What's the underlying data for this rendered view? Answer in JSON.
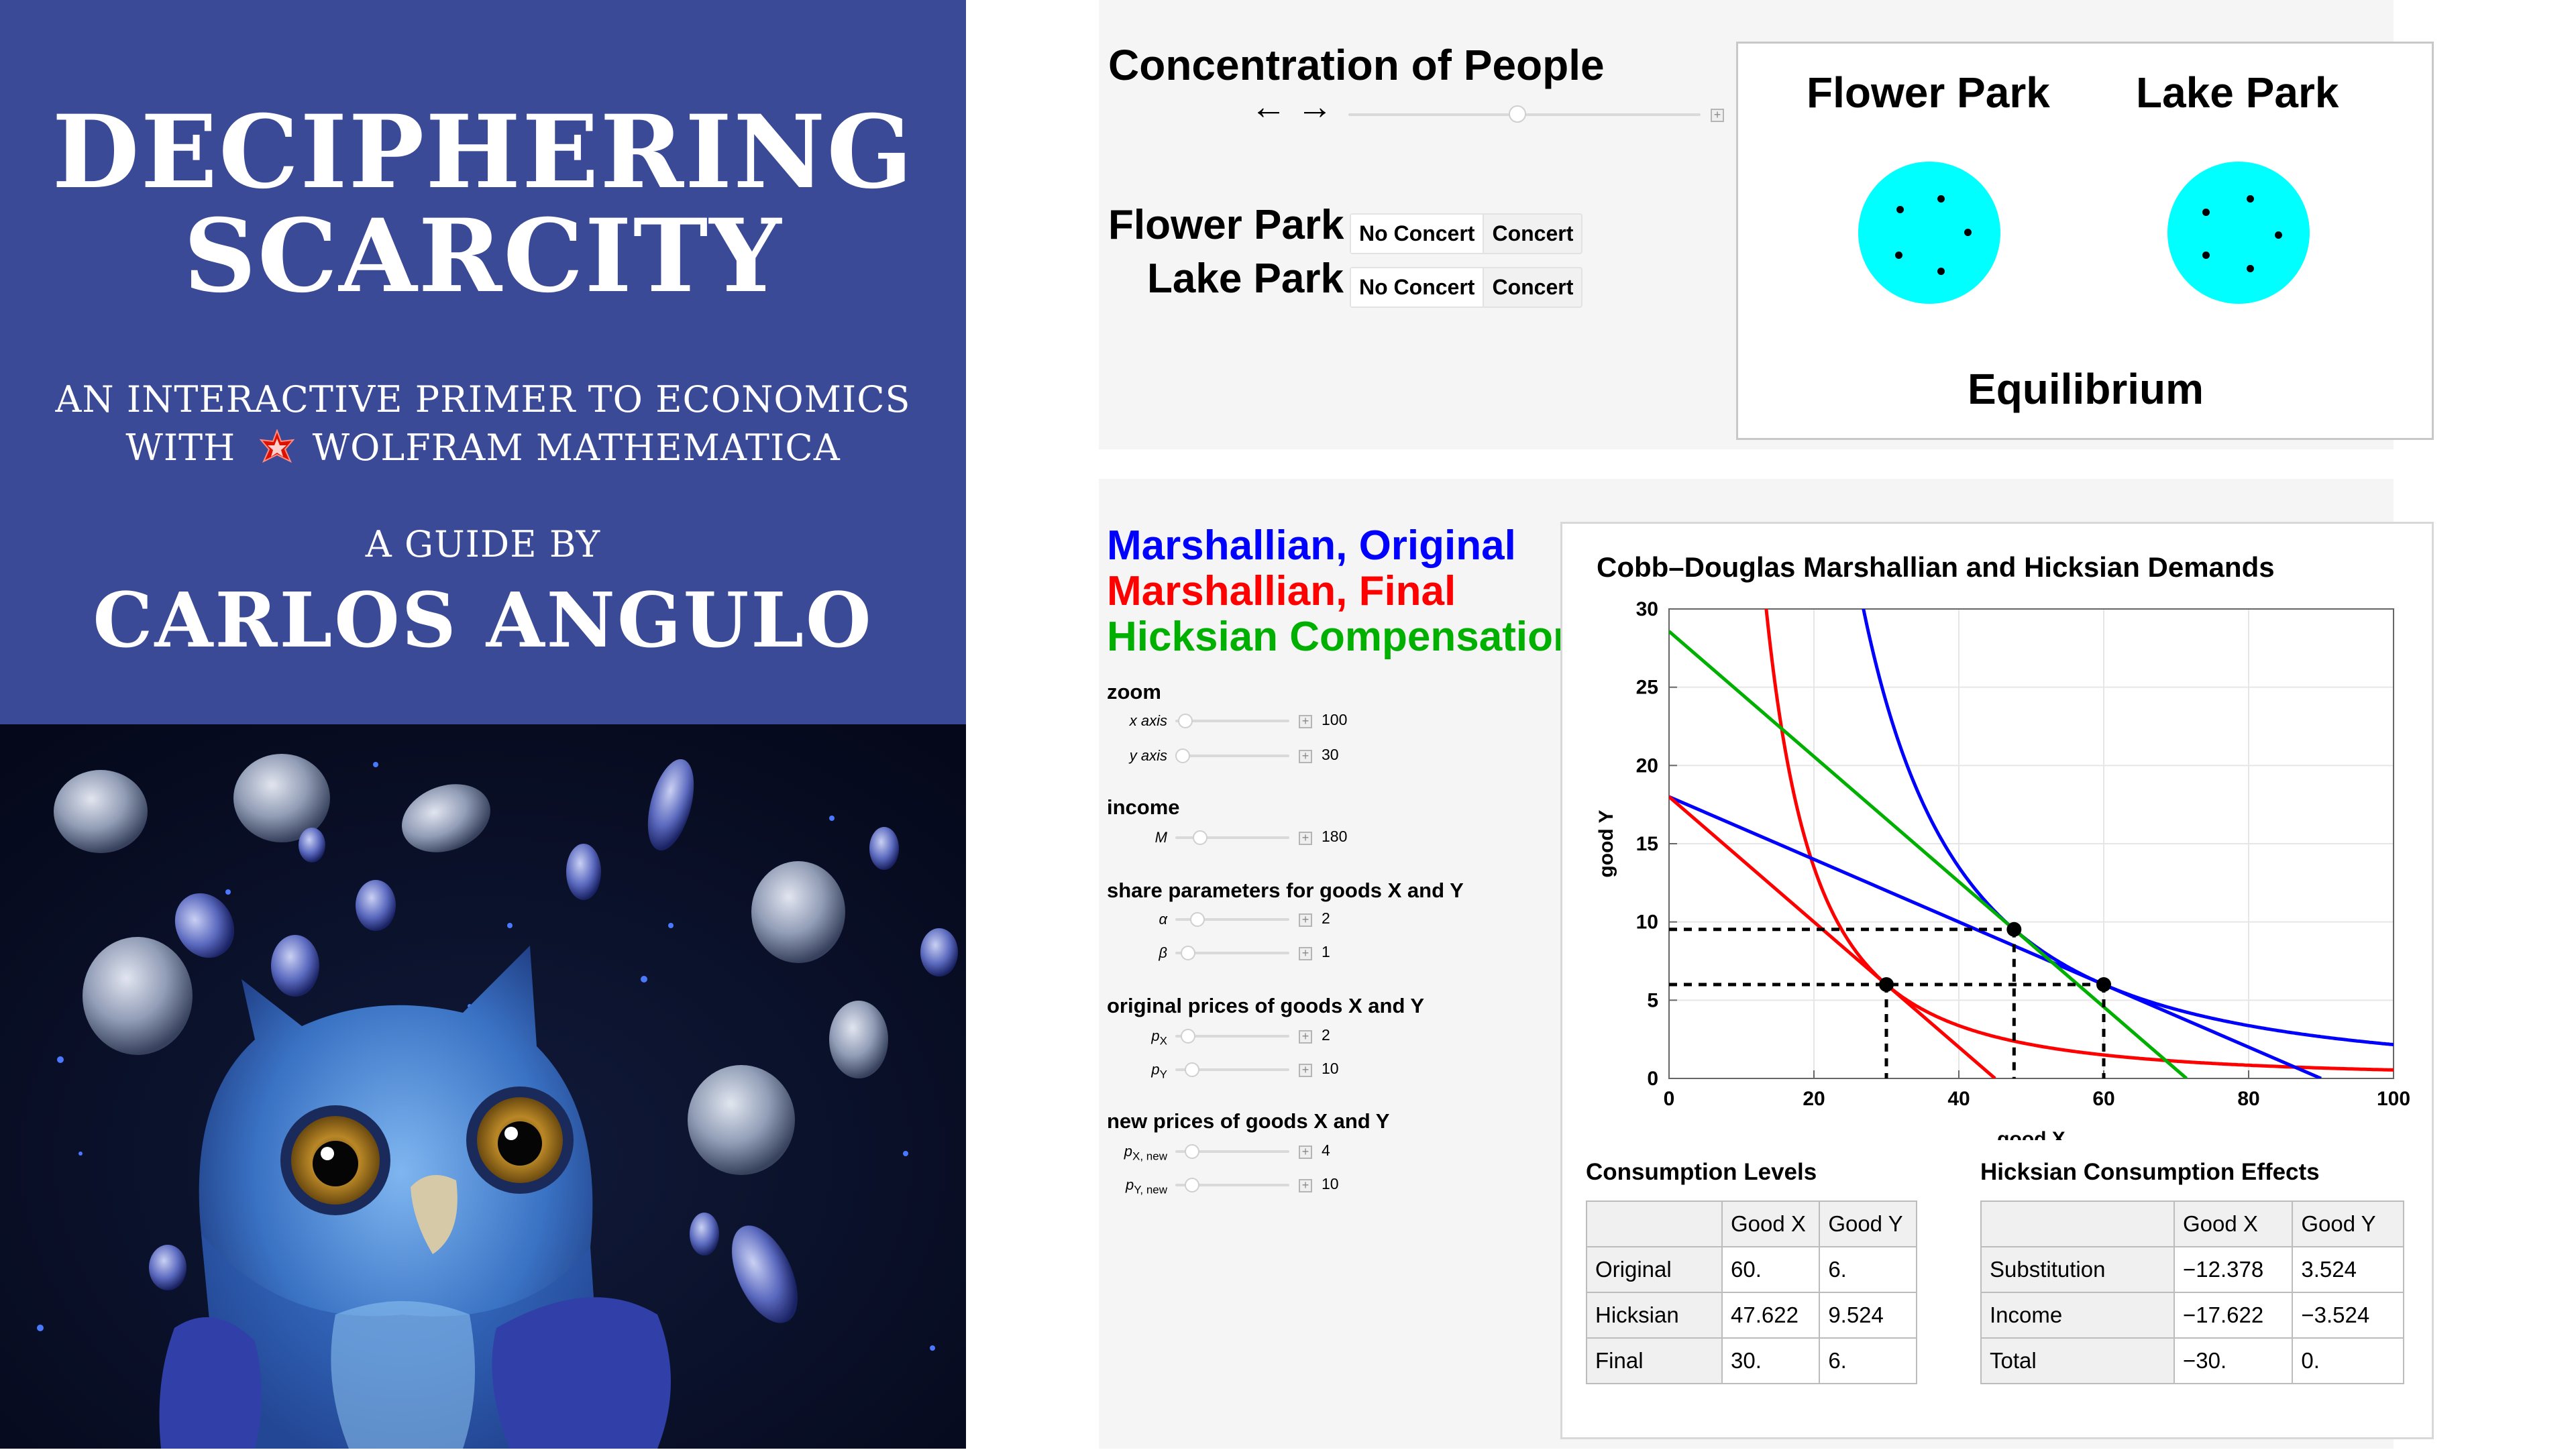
{
  "cover": {
    "title_line1": "DECIPHERING",
    "title_line2": "SCARCITY",
    "subtitle_line1": "AN INTERACTIVE PRIMER TO ECONOMICS",
    "subtitle_line2_a": "WITH",
    "subtitle_line2_b": "WOLFRAM MATHEMATICA",
    "guide_by": "A GUIDE BY",
    "author": "CARLOS ANGULO",
    "colors": {
      "banner": "#3a4a97"
    }
  },
  "parks": {
    "concentration_label": "Concentration of People",
    "arrows": "← →",
    "concentration_slider_position": 0.48,
    "rows": [
      {
        "label": "Flower Park",
        "options": [
          "No Concert",
          "Concert"
        ],
        "selected": "No Concert"
      },
      {
        "label": "Lake Park",
        "options": [
          "No Concert",
          "Concert"
        ],
        "selected": "No Concert"
      }
    ],
    "view": {
      "park1": "Flower Park",
      "park2": "Lake Park",
      "status": "Equilibrium",
      "circle_color": "#00ffff",
      "dots_per_park": 5
    }
  },
  "demand": {
    "legend": [
      {
        "label": "Marshallian, Original",
        "color": "#0000ff"
      },
      {
        "label": "Marshallian, Final",
        "color": "#ff0000"
      },
      {
        "label": "Hicksian Compensation",
        "color": "#00b000"
      }
    ],
    "controls": {
      "zoom": {
        "heading": "zoom",
        "x_label": "x axis",
        "x_value": "100",
        "y_label": "y axis",
        "y_value": "30"
      },
      "income": {
        "heading": "income",
        "m_label": "M",
        "m_value": "180"
      },
      "shares": {
        "heading": "share parameters for goods X and Y",
        "alpha_label": "α",
        "alpha_value": "2",
        "beta_label": "β",
        "beta_value": "1"
      },
      "orig_prices": {
        "heading": "original prices of goods X and Y",
        "px_label": "p",
        "px_sub": "X",
        "px_value": "2",
        "py_label": "p",
        "py_sub": "Y",
        "py_value": "10"
      },
      "new_prices": {
        "heading": "new prices of goods X and Y",
        "px_label": "p",
        "px_sub": "X, new",
        "px_value": "4",
        "py_label": "p",
        "py_sub": "Y, new",
        "py_value": "10"
      }
    },
    "tables": {
      "consumption": {
        "title": "Consumption Levels",
        "header": [
          "",
          "Good X",
          "Good Y"
        ],
        "rows": [
          [
            "Original",
            "60.",
            "6."
          ],
          [
            "Hicksian",
            "47.622",
            "9.524"
          ],
          [
            "Final",
            "30.",
            "6."
          ]
        ]
      },
      "effects": {
        "title": "Hicksian Consumption Effects",
        "header": [
          "",
          "Good X",
          "Good Y"
        ],
        "rows": [
          [
            "Substitution",
            "−12.378",
            "3.524"
          ],
          [
            "Income",
            "−17.622",
            "−3.524"
          ],
          [
            "Total",
            "−30.",
            "0."
          ]
        ]
      }
    }
  },
  "chart_data": {
    "type": "line",
    "title": "Cobb–Douglas Marshallian and Hicksian Demands",
    "xlabel": "good X",
    "ylabel": "good Y",
    "xlim": [
      0,
      100
    ],
    "ylim": [
      0,
      30
    ],
    "xticks": [
      0,
      20,
      40,
      60,
      80,
      100
    ],
    "yticks": [
      0,
      5,
      10,
      15,
      20,
      25,
      30
    ],
    "grid": true,
    "budget_lines": [
      {
        "name": "Marshallian, Original",
        "color": "#0000ff",
        "x": [
          0,
          90
        ],
        "y": [
          18,
          0
        ]
      },
      {
        "name": "Marshallian, Final",
        "color": "#ff0000",
        "x": [
          0,
          45
        ],
        "y": [
          18,
          0
        ]
      },
      {
        "name": "Hicksian Compensation",
        "color": "#00b000",
        "x": [
          0,
          71.43
        ],
        "y": [
          28.57,
          0
        ]
      }
    ],
    "indifference_curves": [
      {
        "name": "Marshallian, Original",
        "color": "#0000ff",
        "utility": 21600
      },
      {
        "name": "Marshallian, Final",
        "color": "#ff0000",
        "utility": 5400
      }
    ],
    "points": [
      {
        "x": 60,
        "y": 6
      },
      {
        "x": 47.622,
        "y": 9.524
      },
      {
        "x": 30,
        "y": 6
      }
    ],
    "colors": {
      "original": "#0000ff",
      "final": "#ff0000",
      "hicksian": "#00b000"
    }
  }
}
